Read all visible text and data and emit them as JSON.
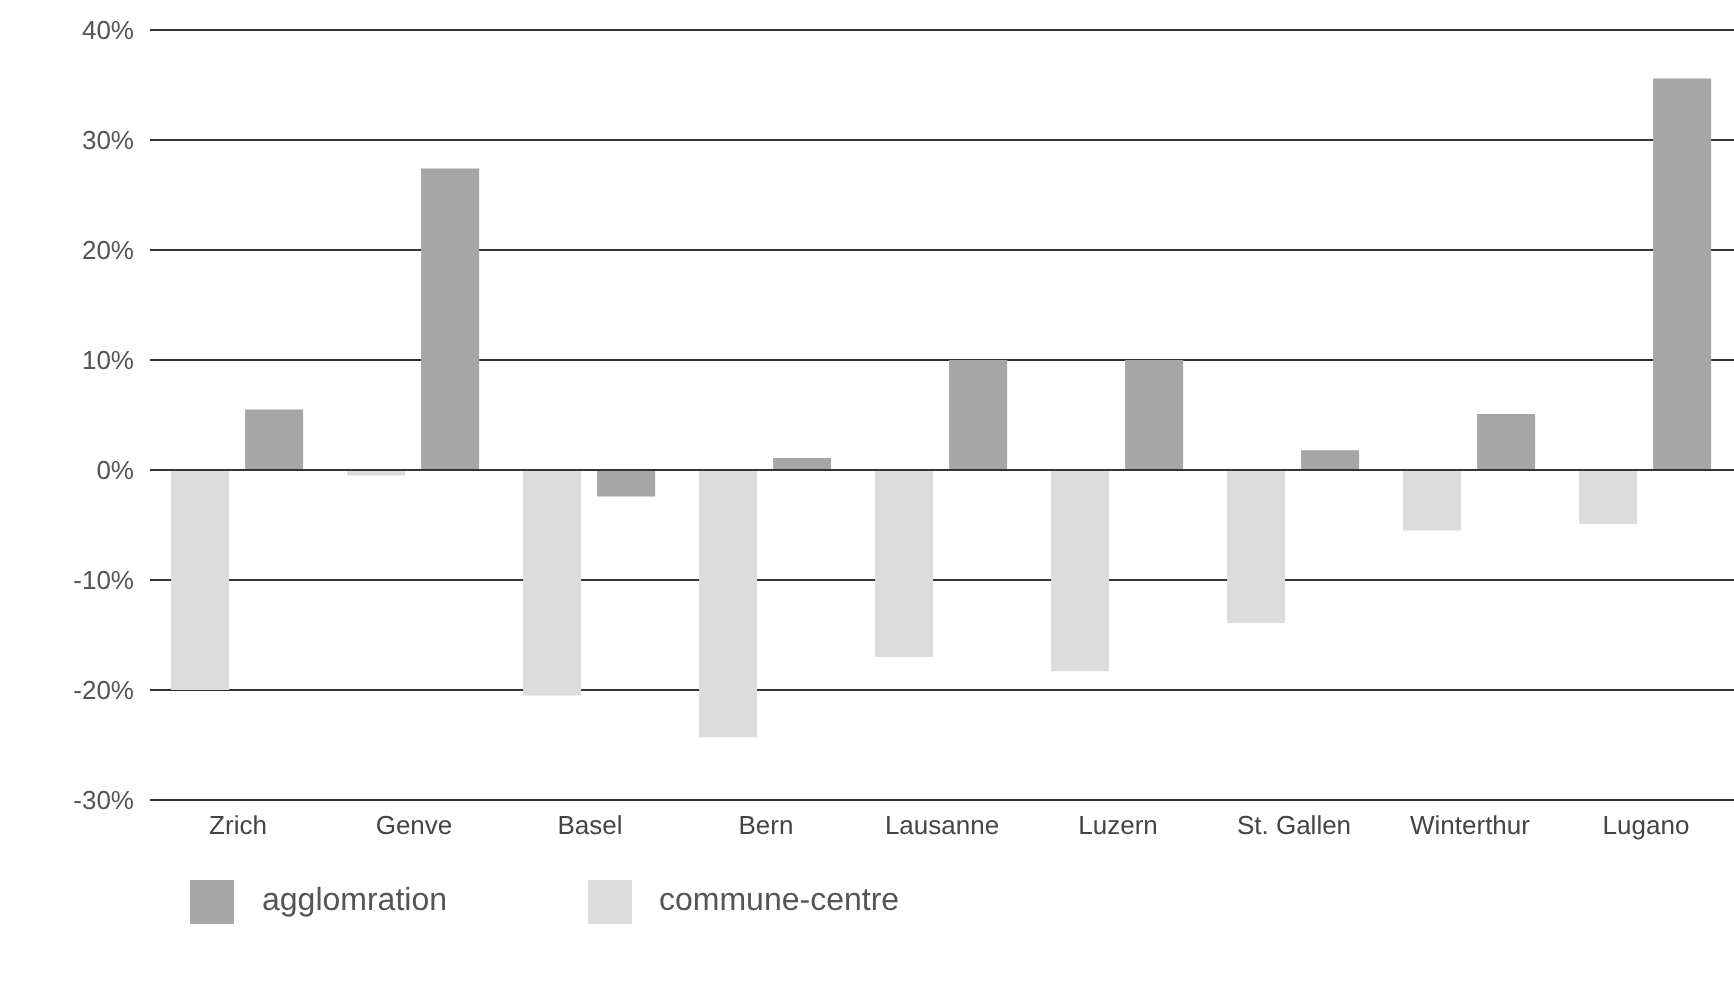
{
  "chart_data": {
    "type": "bar",
    "categories": [
      "Zrich",
      "Genve",
      "Basel",
      "Bern",
      "Lausanne",
      "Luzern",
      "St. Gallen",
      "Winterthur",
      "Lugano"
    ],
    "series": [
      {
        "name": "commune-centre",
        "color": "#dcdcdc",
        "values": [
          -20,
          -0.5,
          -20.5,
          -24.3,
          -17,
          -18.3,
          -13.9,
          -5.5,
          -4.9
        ]
      },
      {
        "name": "agglomration",
        "color": "#a6a6a6",
        "values": [
          5.5,
          27.4,
          -2.4,
          1.1,
          10,
          10,
          1.8,
          5.1,
          35.6
        ]
      }
    ],
    "ylim": [
      -30,
      40
    ],
    "yticks": [
      {
        "value": -30,
        "label": "-30%"
      },
      {
        "value": -20,
        "label": "-20%"
      },
      {
        "value": -10,
        "label": "-10%"
      },
      {
        "value": 0,
        "label": "0%"
      },
      {
        "value": 10,
        "label": "10%"
      },
      {
        "value": 20,
        "label": "20%"
      },
      {
        "value": 30,
        "label": "30%"
      },
      {
        "value": 40,
        "label": "40%"
      }
    ],
    "grid": "y",
    "legend": "bottom left"
  }
}
